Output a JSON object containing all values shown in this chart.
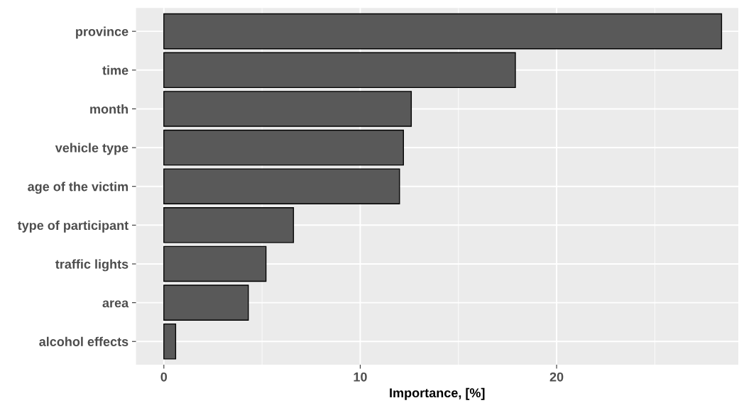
{
  "chart_data": {
    "type": "bar",
    "orientation": "horizontal",
    "xlabel": "Importance, [%]",
    "categories": [
      "province",
      "time",
      "month",
      "vehicle type",
      "age of the victim",
      "type of participant",
      "traffic lights",
      "area",
      "alcohol effects"
    ],
    "values": [
      28.4,
      17.9,
      12.6,
      12.2,
      12.0,
      6.6,
      5.2,
      4.3,
      0.6
    ],
    "color": "#595959",
    "xlim": [
      -1.42,
      29.25
    ],
    "xticks": [
      0,
      10,
      20
    ],
    "grid": true
  }
}
